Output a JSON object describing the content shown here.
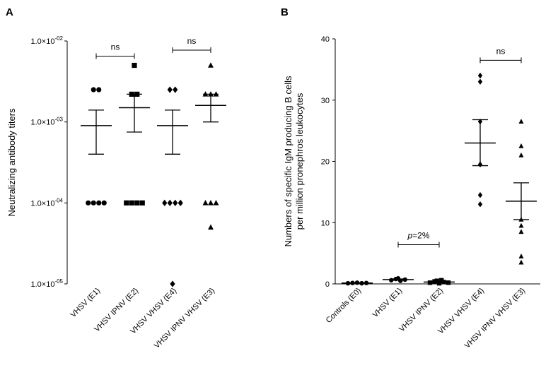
{
  "chart_data": [
    {
      "panel": "A",
      "type": "scatter",
      "ylabel": "Neutralizing antibody titers",
      "yscale": "log",
      "ylim": [
        1e-05,
        0.01
      ],
      "yticks": [
        {
          "value": 1e-05,
          "mant": "1.0×10",
          "exp": "-05"
        },
        {
          "value": 0.0001,
          "mant": "1.0×10",
          "exp": "-04"
        },
        {
          "value": 0.001,
          "mant": "1.0×10",
          "exp": "-03"
        },
        {
          "value": 0.01,
          "mant": "1.0×10",
          "exp": "-02"
        }
      ],
      "categories": [
        "VHSV (E1)",
        "VHSV IPNV (E2)",
        "VHSV VHSV (E4)",
        "VHSV IPNV VHSV (E3)"
      ],
      "groups": [
        {
          "category": "VHSV (E1)",
          "marker": "circle",
          "points": [
            0.0025,
            0.0025,
            0.0001,
            0.0001,
            0.0001,
            0.0001
          ],
          "mean": 0.0009,
          "sem_low": 0.0004,
          "sem_high": 0.0014
        },
        {
          "category": "VHSV IPNV (E2)",
          "marker": "square",
          "points": [
            0.005,
            0.0022,
            0.0022,
            0.0001,
            0.0001,
            0.0001,
            0.0001
          ],
          "mean": 0.0015,
          "sem_low": 0.00075,
          "sem_high": 0.0022
        },
        {
          "category": "VHSV VHSV (E4)",
          "marker": "diamond",
          "points": [
            0.0025,
            0.0025,
            0.0001,
            0.0001,
            0.0001,
            0.0001,
            1e-05
          ],
          "mean": 0.0009,
          "sem_low": 0.0004,
          "sem_high": 0.0014
        },
        {
          "category": "VHSV IPNV VHSV (E3)",
          "marker": "triangle",
          "points": [
            0.005,
            0.0022,
            0.0022,
            0.0022,
            0.0001,
            0.0001,
            0.0001,
            5e-05
          ],
          "mean": 0.0016,
          "sem_low": 0.001,
          "sem_high": 0.0022
        }
      ],
      "annotations": [
        {
          "text": "ns",
          "from": 0,
          "to": 1,
          "y": 0.0065
        },
        {
          "text": "ns",
          "from": 2,
          "to": 3,
          "y": 0.0077
        }
      ]
    },
    {
      "panel": "B",
      "type": "scatter",
      "ylabel_lines": [
        "Numbers of specific IgM producing B cells",
        "per million pronephros leukocytes"
      ],
      "ylim": [
        0,
        40
      ],
      "yticks": [
        0,
        10,
        20,
        30,
        40
      ],
      "categories": [
        "Controls (E0)",
        "VHSV (E1)",
        "VHSV IPNV (E2)",
        "VHSV VHSV (E4)",
        "VHSV IPNV VHSV (E3)"
      ],
      "groups": [
        {
          "category": "Controls (E0)",
          "marker": "circle",
          "points": [
            0.1,
            0.15,
            0.2,
            0.1,
            0.15
          ],
          "mean": 0.15,
          "sem_low": 0.1,
          "sem_high": 0.2
        },
        {
          "category": "VHSV (E1)",
          "marker": "circle",
          "points": [
            0.6,
            0.8,
            0.9,
            0.5,
            0.7
          ],
          "mean": 0.7,
          "sem_low": 0.6,
          "sem_high": 0.8
        },
        {
          "category": "VHSV IPNV (E2)",
          "marker": "square",
          "points": [
            0.2,
            0.4,
            0.5,
            0.1,
            0.3,
            0.6,
            0.2
          ],
          "mean": 0.3,
          "sem_low": 0.2,
          "sem_high": 0.45
        },
        {
          "category": "VHSV VHSV (E4)",
          "marker": "diamond",
          "points": [
            34,
            33,
            26.5,
            19.5,
            14.5,
            13
          ],
          "mean": 23,
          "sem_low": 19.3,
          "sem_high": 26.8
        },
        {
          "category": "VHSV IPNV VHSV (E3)",
          "marker": "triangle",
          "points": [
            26.5,
            22.5,
            21,
            10.5,
            9.5,
            8.5,
            4.5,
            3.5
          ],
          "mean": 13.5,
          "sem_low": 10.5,
          "sem_high": 16.5
        }
      ],
      "annotations": [
        {
          "text": "p=2%",
          "italic_prefix": "p",
          "from": 1,
          "to": 2,
          "y": 6.4
        },
        {
          "text": "ns",
          "from": 3,
          "to": 4,
          "y": 36.5
        }
      ]
    }
  ]
}
